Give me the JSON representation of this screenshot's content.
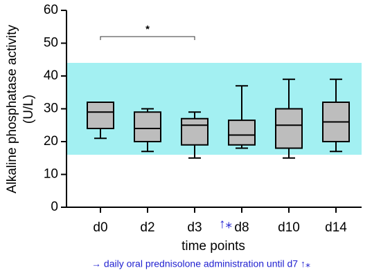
{
  "chart_data": {
    "type": "box",
    "ylabel": [
      "Alkaline phosphatase activity",
      "(U/L)"
    ],
    "xlabel": "time points",
    "categories": [
      "d0",
      "d2",
      "d3",
      "d8",
      "d10",
      "d14"
    ],
    "series": [
      {
        "color": "#bdbdbd",
        "min": [
          21,
          17,
          15,
          18,
          15,
          17
        ],
        "q1": [
          24,
          20,
          19,
          19,
          18,
          20
        ],
        "median": [
          29,
          24,
          25,
          22,
          25,
          26
        ],
        "q3": [
          32,
          29,
          27,
          26.5,
          30,
          32
        ],
        "max": [
          32,
          30,
          29,
          37,
          39,
          39
        ]
      }
    ],
    "ylim": [
      0,
      60
    ],
    "yticks": [
      0,
      10,
      20,
      30,
      40,
      50,
      60
    ],
    "reference_range": {
      "values": [
        16,
        44
      ],
      "color": "#a3f0f2"
    },
    "significance": [
      {
        "label": "*",
        "between": [
          "d0",
          "d3"
        ],
        "y": 52
      }
    ],
    "marker": {
      "text": "↑⁎",
      "category": "d8",
      "color": "#1f1fd0"
    },
    "footnote": {
      "text": "→ daily oral prednisolone administration until d7 ↑⁎",
      "color": "#1f1fd0"
    }
  }
}
